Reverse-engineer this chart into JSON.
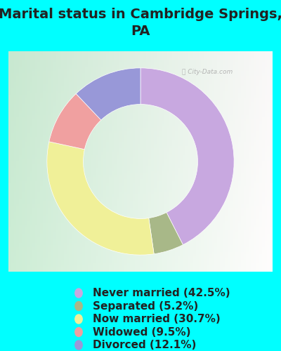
{
  "title": "Marital status in Cambridge Springs,\nPA",
  "background_color": "#00FFFF",
  "chart_bg_gradient_left": "#c8e8d0",
  "chart_bg_gradient_right": "#e8f0e8",
  "slices": [
    42.5,
    5.2,
    30.7,
    9.5,
    12.1
  ],
  "labels": [
    "Never married (42.5%)",
    "Separated (5.2%)",
    "Now married (30.7%)",
    "Widowed (9.5%)",
    "Divorced (12.1%)"
  ],
  "colors": [
    "#c8a8e0",
    "#a8b888",
    "#f0f098",
    "#f0a0a0",
    "#9898d8"
  ],
  "startangle": 90,
  "watermark": "City-Data.com",
  "title_fontsize": 14,
  "legend_fontsize": 11,
  "title_color": "#222222"
}
